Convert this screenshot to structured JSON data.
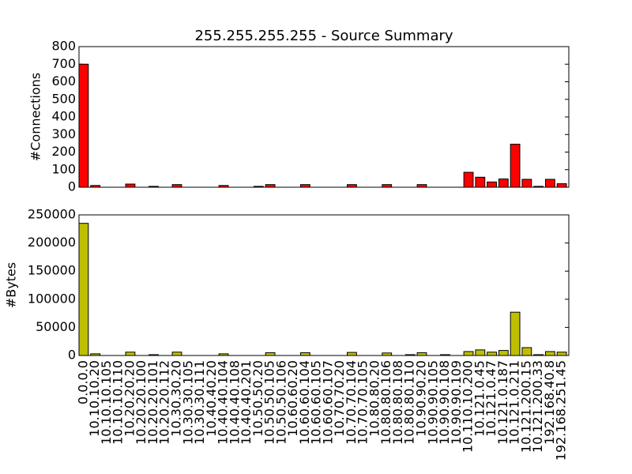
{
  "chart_data": [
    {
      "type": "bar",
      "title": "255.255.255.255 - Source Summary",
      "ylabel": "#Connections",
      "color": "#ff0000",
      "values": [
        700,
        10,
        0,
        0,
        18,
        0,
        5,
        0,
        15,
        0,
        0,
        0,
        10,
        0,
        0,
        5,
        15,
        0,
        0,
        15,
        0,
        0,
        0,
        15,
        0,
        0,
        15,
        0,
        0,
        15,
        0,
        0,
        0,
        85,
        57,
        30,
        47,
        245,
        45,
        5,
        45,
        20
      ],
      "ylim": [
        0,
        800
      ],
      "yticks": [
        0,
        100,
        200,
        300,
        400,
        500,
        600,
        700,
        800
      ]
    },
    {
      "type": "bar",
      "ylabel": "#Bytes",
      "color": "#bfbf00",
      "categories": [
        "0.0.0.0",
        "10.10.10.20",
        "10.10.10.105",
        "10.10.10.110",
        "10.20.20.20",
        "10.20.20.100",
        "10.20.20.101",
        "10.20.20.112",
        "10.30.30.20",
        "10.30.30.105",
        "10.30.30.111",
        "10.40.40.20",
        "10.40.40.104",
        "10.40.40.108",
        "10.40.40.201",
        "10.50.50.20",
        "10.50.50.105",
        "10.50.50.106",
        "10.60.60.20",
        "10.60.60.104",
        "10.60.60.105",
        "10.60.60.107",
        "10.70.70.20",
        "10.70.70.104",
        "10.70.70.105",
        "10.80.80.20",
        "10.80.80.106",
        "10.80.80.108",
        "10.80.80.110",
        "10.90.90.20",
        "10.90.90.105",
        "10.90.90.108",
        "10.90.90.109",
        "10.110.10.200",
        "10.121.0.45",
        "10.121.0.47",
        "10.121.0.187",
        "10.121.0.211",
        "10.121.200.15",
        "10.121.200.33",
        "192.168.40.8",
        "192.168.251.45"
      ],
      "values": [
        235000,
        3000,
        0,
        0,
        6000,
        0,
        1500,
        0,
        6000,
        0,
        0,
        0,
        3000,
        0,
        0,
        0,
        5000,
        0,
        0,
        5000,
        0,
        0,
        0,
        5500,
        0,
        0,
        4500,
        0,
        1500,
        5000,
        0,
        1500,
        0,
        7000,
        10000,
        6000,
        9000,
        77000,
        14000,
        1500,
        7000,
        6000
      ],
      "ylim": [
        0,
        250000
      ],
      "yticks": [
        0,
        50000,
        100000,
        150000,
        200000,
        250000
      ]
    }
  ]
}
